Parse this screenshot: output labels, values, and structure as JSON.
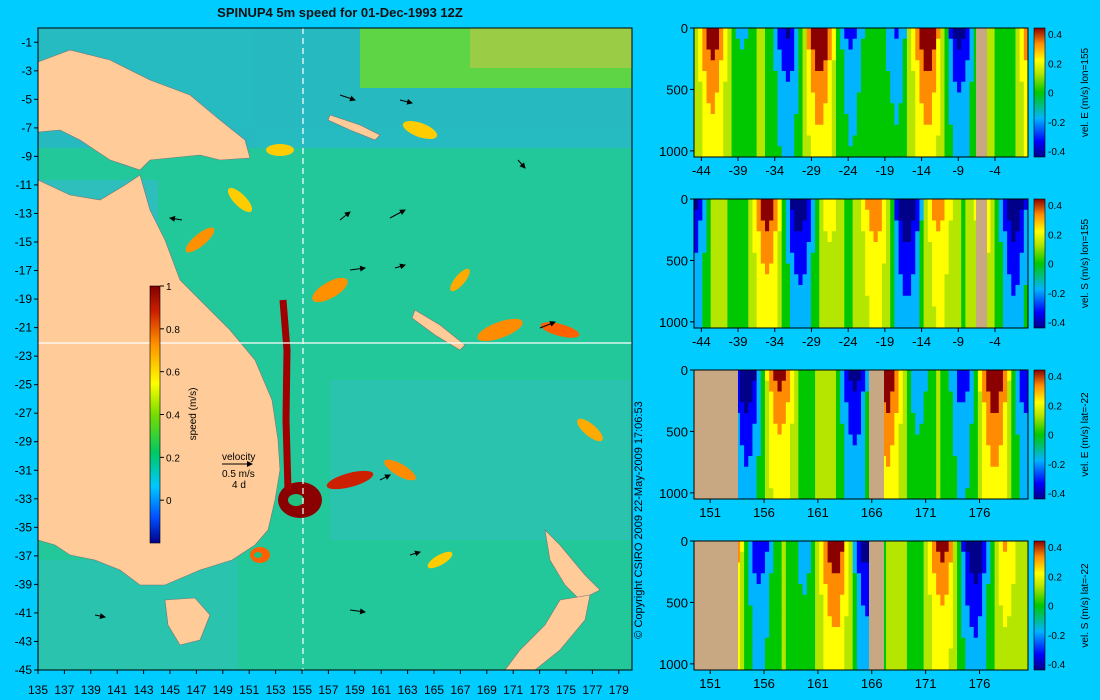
{
  "main_title": "SPINUP4 5m speed for 01-Dec-1993 12Z",
  "copyright": "© Copyright CSIRO 2009   22-May-2009 17:06:53",
  "colors": {
    "background": "#00ccff",
    "land": "#ffcc99",
    "section_land": "#c8a882",
    "guide_line": "#ffffff"
  },
  "map": {
    "x_ticks": [
      "135",
      "137",
      "139",
      "141",
      "143",
      "145",
      "147",
      "149",
      "151",
      "153",
      "155",
      "157",
      "159",
      "161",
      "163",
      "165",
      "167",
      "169",
      "171",
      "173",
      "175",
      "177",
      "179"
    ],
    "y_ticks": [
      "-1",
      "-3",
      "-5",
      "-7",
      "-9",
      "-11",
      "-13",
      "-15",
      "-17",
      "-19",
      "-21",
      "-23",
      "-25",
      "-27",
      "-29",
      "-31",
      "-33",
      "-35",
      "-37",
      "-39",
      "-41",
      "-43",
      "-45"
    ],
    "xlim": [
      135,
      180
    ],
    "ylim": [
      -45,
      0
    ],
    "guide_lon": 155,
    "guide_lat": -22,
    "colorbar": {
      "label": "speed (m/s)",
      "ticks": [
        "1",
        "0.8",
        "0.6",
        "0.4",
        "0.2",
        "0"
      ],
      "range": [
        -0.2,
        1
      ]
    },
    "velocity_key": {
      "title": "velocity",
      "speed": "0.5 m/s",
      "duration": "4 d"
    }
  },
  "chart_data": [
    {
      "type": "heatmap",
      "title": "SPINUP4 5m speed for 01-Dec-1993 12Z",
      "variable": "speed (m/s)",
      "xlim": [
        135,
        180
      ],
      "ylim": [
        -45,
        0
      ],
      "color_range": [
        -0.2,
        1
      ]
    },
    {
      "type": "heatmap",
      "variable": "vel. E (m/s) lon=155",
      "x_ticks": [
        "-44",
        "-39",
        "-34",
        "-29",
        "-24",
        "-19",
        "-14",
        "-9",
        "-4"
      ],
      "y_ticks": [
        "0",
        "500",
        "1000"
      ],
      "colorbar_ticks": [
        "0.4",
        "0.2",
        "0",
        "-0.2",
        "-0.4"
      ],
      "color_range": [
        -0.4,
        0.4
      ]
    },
    {
      "type": "heatmap",
      "variable": "vel. S (m/s) lon=155",
      "x_ticks": [
        "-44",
        "-39",
        "-34",
        "-29",
        "-24",
        "-19",
        "-14",
        "-9",
        "-4"
      ],
      "y_ticks": [
        "0",
        "500",
        "1000"
      ],
      "colorbar_ticks": [
        "0.4",
        "0.2",
        "0",
        "-0.2",
        "-0.4"
      ],
      "color_range": [
        -0.4,
        0.4
      ]
    },
    {
      "type": "heatmap",
      "variable": "vel. E (m/s) lat=-22",
      "x_ticks": [
        "151",
        "156",
        "161",
        "166",
        "171",
        "176"
      ],
      "y_ticks": [
        "0",
        "500",
        "1000"
      ],
      "colorbar_ticks": [
        "0.4",
        "0.2",
        "0",
        "-0.2",
        "-0.4"
      ],
      "color_range": [
        -0.4,
        0.4
      ]
    },
    {
      "type": "heatmap",
      "variable": "vel. S (m/s) lat=-22",
      "x_ticks": [
        "151",
        "156",
        "161",
        "166",
        "171",
        "176"
      ],
      "y_ticks": [
        "0",
        "500",
        "1000"
      ],
      "colorbar_ticks": [
        "0.4",
        "0.2",
        "0",
        "-0.2",
        "-0.4"
      ],
      "color_range": [
        -0.4,
        0.4
      ]
    }
  ]
}
